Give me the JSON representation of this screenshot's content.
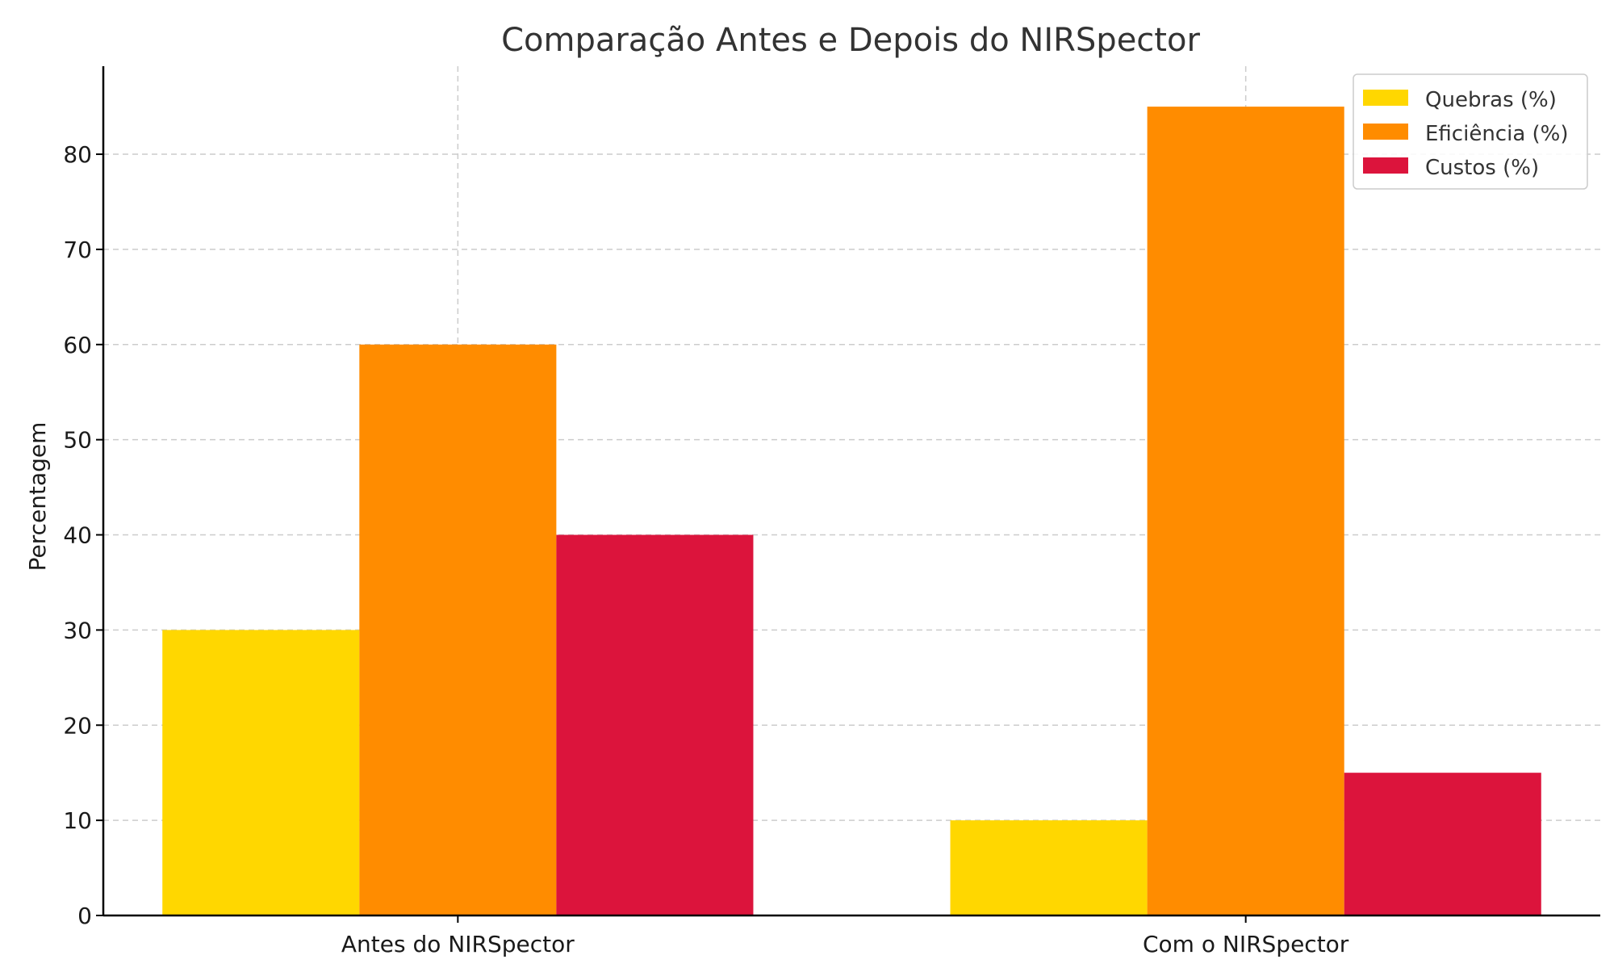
{
  "chart_data": {
    "type": "bar",
    "title": "Comparação Antes e Depois do NIRSpector",
    "xlabel": "",
    "ylabel": "Percentagem",
    "categories": [
      "Antes do NIRSpector",
      "Com o NIRSpector"
    ],
    "series": [
      {
        "name": "Quebras (%)",
        "values": [
          30,
          10
        ],
        "color": "#FFD700"
      },
      {
        "name": "Eficiência (%)",
        "values": [
          60,
          85
        ],
        "color": "#FF8C00"
      },
      {
        "name": "Custos (%)",
        "values": [
          40,
          15
        ],
        "color": "#DC143C"
      }
    ],
    "ylim": [
      0,
      89.25
    ],
    "yticks": [
      0,
      10,
      20,
      30,
      40,
      50,
      60,
      70,
      80
    ],
    "grid": true,
    "legend_position": "top-right"
  }
}
